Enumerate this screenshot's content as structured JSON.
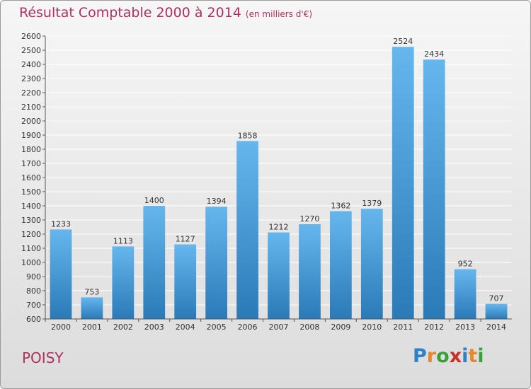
{
  "header": {
    "title": "Résultat Comptable 2000 à 2014",
    "subtitle": "(en milliers d'€)"
  },
  "footer": {
    "place": "POISY",
    "logo": "Proxiti"
  },
  "colors": {
    "title": "#b03060",
    "bar_top": "#66b6ee",
    "bar_bottom": "#2a7ab8",
    "grid": "#ffffff",
    "logo_letters": [
      "#2e80c8",
      "#e8862a",
      "#3aa03a",
      "#c8302a",
      "#2e80c8",
      "#e8862a",
      "#3aa03a"
    ]
  },
  "chart_data": {
    "type": "bar",
    "title": "Résultat Comptable 2000 à 2014",
    "subtitle": "(en milliers d'€)",
    "categories": [
      "2000",
      "2001",
      "2002",
      "2003",
      "2004",
      "2005",
      "2006",
      "2007",
      "2008",
      "2009",
      "2010",
      "2011",
      "2012",
      "2013",
      "2014"
    ],
    "values": [
      1233,
      753,
      1113,
      1400,
      1127,
      1394,
      1858,
      1212,
      1270,
      1362,
      1379,
      2524,
      2434,
      952,
      707
    ],
    "ylim": [
      600,
      2600
    ],
    "ytick_step": 100,
    "grid": true,
    "xlabel": "",
    "ylabel": ""
  }
}
